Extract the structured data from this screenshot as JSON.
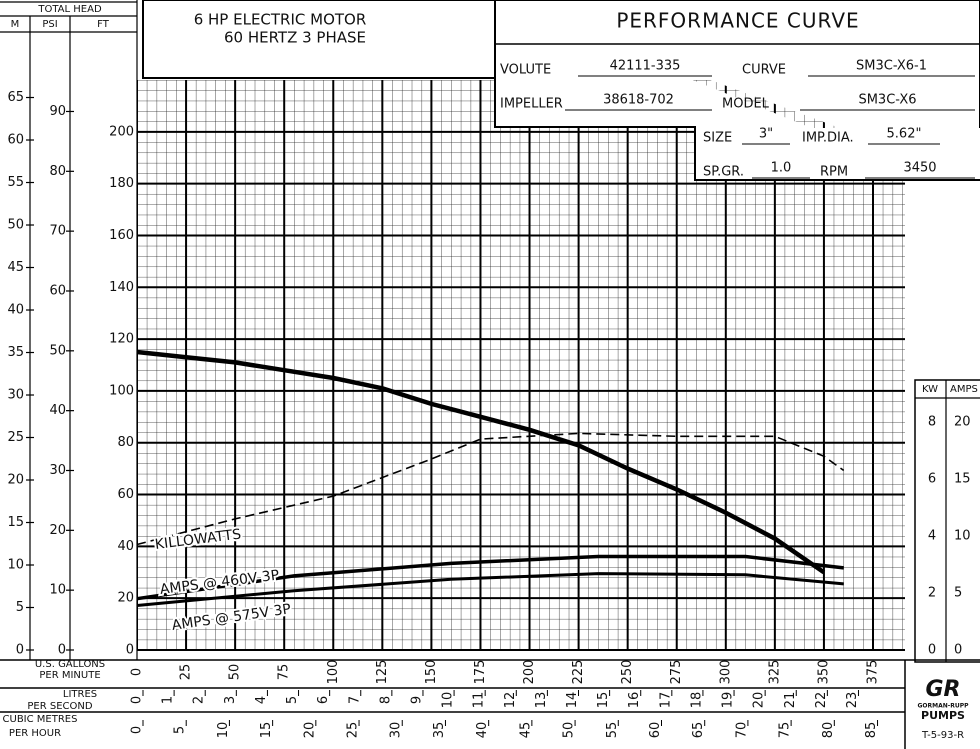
{
  "header": {
    "total_head": "TOTAL HEAD",
    "units": [
      "M",
      "PSI",
      "FT"
    ],
    "motor": [
      "6 HP ELECTRIC MOTOR",
      "60 HERTZ 3 PHASE"
    ]
  },
  "info": {
    "title": "PERFORMANCE CURVE",
    "fields": [
      {
        "label": "VOLUTE",
        "value": "42111-335"
      },
      {
        "label": "CURVE",
        "value": "SM3C-X6-1"
      },
      {
        "label": "IMPELLER",
        "value": "38618-702"
      },
      {
        "label": "MODEL",
        "value": "SM3C-X6"
      },
      {
        "label": "SIZE",
        "value": "3\""
      },
      {
        "label": "IMP.DIA.",
        "value": "5.62\""
      },
      {
        "label": "SP.GR.",
        "value": "1.0"
      },
      {
        "label": "RPM",
        "value": "3450"
      }
    ]
  },
  "chart_data": {
    "type": "line",
    "xlabel": [
      "U.S. GALLONS",
      "PER MINUTE"
    ],
    "xlim": [
      0,
      375
    ],
    "xticks": [
      0,
      25,
      50,
      75,
      100,
      125,
      150,
      175,
      200,
      225,
      250,
      275,
      300,
      325,
      350,
      375
    ],
    "ylim": [
      0,
      220
    ],
    "yticks": [
      0,
      20,
      40,
      60,
      80,
      100,
      120,
      140,
      160,
      180,
      200
    ],
    "mlim": [
      0,
      67.06
    ],
    "mticks": [
      0,
      5,
      10,
      15,
      20,
      25,
      30,
      35,
      40,
      45,
      50,
      55,
      60,
      65
    ],
    "psilim": [
      0,
      95.26
    ],
    "psiticks": [
      0,
      10,
      20,
      30,
      40,
      50,
      60,
      70,
      80,
      90
    ],
    "y2label": "KW",
    "y2lim": [
      0,
      20
    ],
    "y2ticks": [
      0,
      2,
      4,
      6,
      8
    ],
    "ampslabel": "AMPS",
    "ampslim": [
      0,
      50
    ],
    "ampsticks": [
      0,
      5,
      10,
      15,
      20
    ],
    "lps_label": [
      "LITRES",
      "PER SECOND"
    ],
    "lps_lim": [
      0,
      23.66
    ],
    "lps_ticks": [
      0,
      1,
      2,
      3,
      4,
      5,
      6,
      7,
      8,
      9,
      10,
      11,
      12,
      13,
      14,
      15,
      16,
      17,
      18,
      19,
      20,
      21,
      22,
      23
    ],
    "m3h_label": [
      "CUBIC METRES",
      "PER HOUR"
    ],
    "m3h_lim": [
      0,
      85.17
    ],
    "m3h_ticks": [
      0,
      5,
      10,
      15,
      20,
      25,
      30,
      35,
      40,
      45,
      50,
      55,
      60,
      65,
      70,
      75,
      80,
      85
    ],
    "grid": true,
    "series": [
      {
        "color": "#000000",
        "x": [
          0,
          25,
          50,
          75,
          100,
          125,
          150,
          175,
          200,
          225,
          250,
          275,
          300,
          325,
          350
        ],
        "values": [
          115,
          113,
          111,
          108,
          105,
          101,
          95,
          90,
          85,
          79,
          70,
          62,
          53,
          43,
          30
        ]
      },
      {
        "name": "KILLOWATTS",
        "color": "#000000",
        "axis": "y2",
        "dashed": true,
        "x": [
          0,
          50,
          100,
          150,
          175,
          225,
          275,
          325,
          350,
          360
        ],
        "values": [
          3.7,
          4.6,
          5.4,
          6.7,
          7.4,
          7.6,
          7.5,
          7.5,
          6.8,
          6.3
        ]
      },
      {
        "name": "AMPS @ 460V 3P",
        "color": "#000000",
        "axis": "amps",
        "x": [
          0,
          80,
          160,
          235,
          310,
          360
        ],
        "values": [
          4.5,
          6.5,
          7.6,
          8.2,
          8.2,
          7.2
        ]
      },
      {
        "name": "AMPS @ 575V 3P",
        "color": "#000000",
        "axis": "amps",
        "x": [
          0,
          80,
          160,
          235,
          310,
          360
        ],
        "values": [
          3.9,
          5.2,
          6.2,
          6.7,
          6.6,
          5.8
        ]
      }
    ]
  },
  "footer": {
    "logo": "GR",
    "brand": [
      "GORMAN-RUPP",
      "PUMPS"
    ],
    "code": "T-5-93-R"
  }
}
